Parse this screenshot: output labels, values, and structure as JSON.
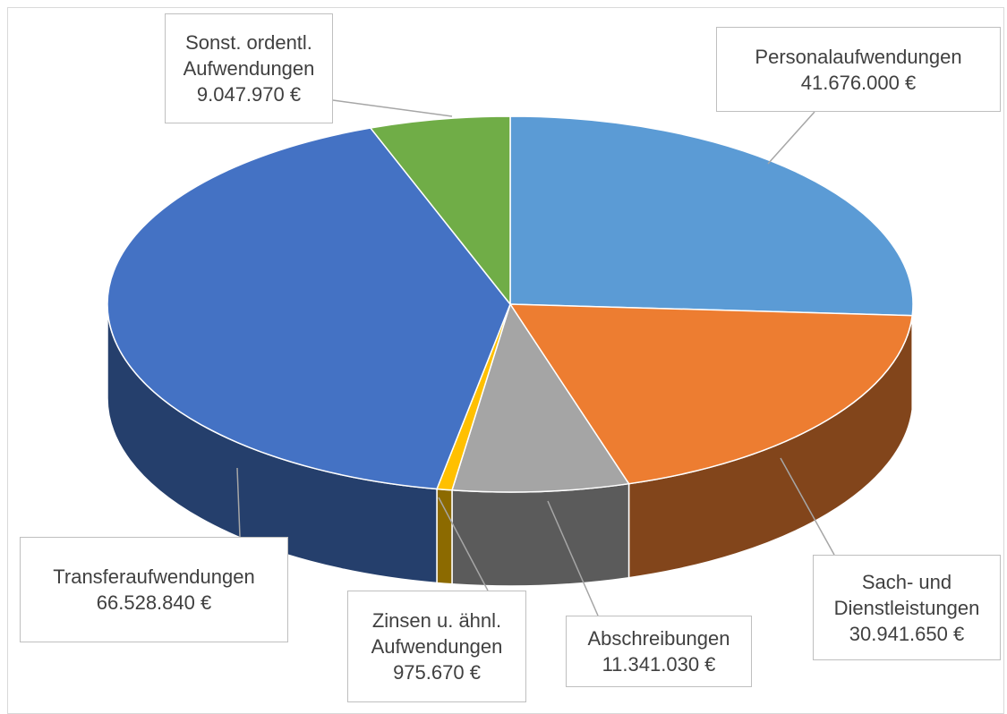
{
  "chart_data": {
    "type": "pie3d",
    "categories": [
      "Personalaufwendungen",
      "Sach- und Dienstleistungen",
      "Abschreibungen",
      "Zinsen u. ähnl. Aufwendungen",
      "Transferaufwendungen",
      "Sonst. ordentl. Aufwendungen"
    ],
    "values": [
      41676000,
      30941650,
      11341030,
      975670,
      66528840,
      9047970
    ],
    "value_labels": [
      "41.676.000 €",
      "30.941.650 €",
      "11.341.030 €",
      "975.670 €",
      "66.528.840 €",
      "9.047.970 €"
    ],
    "colors": [
      "#5b9bd5",
      "#ed7d31",
      "#a5a5a5",
      "#ffc000",
      "#4472c4",
      "#70ad47"
    ]
  }
}
